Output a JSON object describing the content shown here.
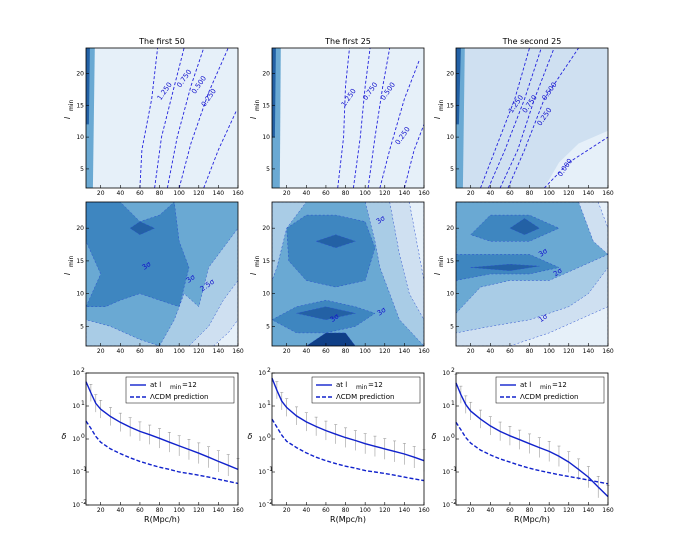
{
  "chart_data": {
    "type": "grid-of-plots",
    "x_ticks": [
      20,
      40,
      60,
      80,
      100,
      120,
      140,
      160
    ],
    "x_range": [
      5,
      160
    ],
    "row1_y_ticks": [
      5,
      10,
      15,
      20
    ],
    "row2_y_ticks": [
      5,
      10,
      15,
      20
    ],
    "y_range": [
      2,
      24
    ],
    "ylabel_l": "l",
    "ylabel_sub": "min",
    "columns": [
      {
        "title": "The first 50",
        "row1_labels": [
          {
            "text": "1.250",
            "x": 87,
            "y": 17
          },
          {
            "text": "0.750",
            "x": 107,
            "y": 19
          },
          {
            "text": "0.500",
            "x": 122,
            "y": 18
          },
          {
            "text": "0.250",
            "x": 132,
            "y": 16
          }
        ],
        "row2_labels": [
          {
            "text": "3σ",
            "x": 68,
            "y": 14
          },
          {
            "text": "3σ",
            "x": 113,
            "y": 12
          },
          {
            "text": "2.5σ",
            "x": 130,
            "y": 11
          }
        ],
        "row3": {
          "legend_obs": "at l",
          "legend_obs_sub": "min",
          "legend_obs_eq": "=12",
          "legend_pred": "ΛCDM prediction",
          "obs_points": [
            [
              5,
              55
            ],
            [
              10,
              25
            ],
            [
              15,
              12
            ],
            [
              20,
              8
            ],
            [
              30,
              4.8
            ],
            [
              40,
              3.2
            ],
            [
              50,
              2.3
            ],
            [
              60,
              1.7
            ],
            [
              70,
              1.35
            ],
            [
              80,
              1.05
            ],
            [
              90,
              0.8
            ],
            [
              100,
              0.62
            ],
            [
              110,
              0.48
            ],
            [
              120,
              0.37
            ],
            [
              130,
              0.28
            ],
            [
              140,
              0.21
            ],
            [
              150,
              0.16
            ],
            [
              160,
              0.12
            ]
          ],
          "pred_points": [
            [
              5,
              3.5
            ],
            [
              10,
              2.1
            ],
            [
              15,
              1.2
            ],
            [
              20,
              0.8
            ],
            [
              30,
              0.5
            ],
            [
              40,
              0.36
            ],
            [
              50,
              0.27
            ],
            [
              60,
              0.21
            ],
            [
              70,
              0.17
            ],
            [
              80,
              0.14
            ],
            [
              90,
              0.12
            ],
            [
              100,
              0.1
            ],
            [
              110,
              0.09
            ],
            [
              120,
              0.08
            ],
            [
              130,
              0.07
            ],
            [
              140,
              0.06
            ],
            [
              150,
              0.052
            ],
            [
              160,
              0.045
            ]
          ]
        }
      },
      {
        "title": "The first 25",
        "row1_labels": [
          {
            "text": "1.250",
            "x": 85,
            "y": 16
          },
          {
            "text": "0.750",
            "x": 107,
            "y": 17
          },
          {
            "text": "0.500",
            "x": 125,
            "y": 17
          },
          {
            "text": "0.250",
            "x": 140,
            "y": 10
          }
        ],
        "row2_labels": [
          {
            "text": "3σ",
            "x": 117,
            "y": 21
          },
          {
            "text": "3σ",
            "x": 70,
            "y": 6
          },
          {
            "text": "3σ",
            "x": 118,
            "y": 7
          }
        ],
        "row3": {
          "legend_obs": "at l",
          "legend_obs_sub": "min",
          "legend_obs_eq": "=12",
          "legend_pred": "ΛCDM prediction",
          "obs_points": [
            [
              5,
              70
            ],
            [
              10,
              30
            ],
            [
              15,
              14
            ],
            [
              20,
              9
            ],
            [
              30,
              5
            ],
            [
              40,
              3.3
            ],
            [
              50,
              2.4
            ],
            [
              60,
              1.8
            ],
            [
              70,
              1.4
            ],
            [
              80,
              1.1
            ],
            [
              90,
              0.9
            ],
            [
              100,
              0.72
            ],
            [
              110,
              0.6
            ],
            [
              120,
              0.5
            ],
            [
              130,
              0.42
            ],
            [
              140,
              0.35
            ],
            [
              150,
              0.28
            ],
            [
              160,
              0.22
            ]
          ],
          "pred_points": [
            [
              5,
              4
            ],
            [
              10,
              2.3
            ],
            [
              15,
              1.3
            ],
            [
              20,
              0.85
            ],
            [
              30,
              0.55
            ],
            [
              40,
              0.38
            ],
            [
              50,
              0.28
            ],
            [
              60,
              0.22
            ],
            [
              70,
              0.18
            ],
            [
              80,
              0.15
            ],
            [
              90,
              0.13
            ],
            [
              100,
              0.11
            ],
            [
              110,
              0.1
            ],
            [
              120,
              0.09
            ],
            [
              130,
              0.08
            ],
            [
              140,
              0.07
            ],
            [
              150,
              0.062
            ],
            [
              160,
              0.055
            ]
          ]
        }
      },
      {
        "title": "The second 25",
        "row1_labels": [
          {
            "text": "1.250",
            "x": 68,
            "y": 15
          },
          {
            "text": "0.750",
            "x": 82,
            "y": 15
          },
          {
            "text": "0.500",
            "x": 102,
            "y": 17
          },
          {
            "text": "0.250",
            "x": 97,
            "y": 13
          },
          {
            "text": "0.000",
            "x": 118,
            "y": 5
          }
        ],
        "row2_labels": [
          {
            "text": "3σ",
            "x": 95,
            "y": 16
          },
          {
            "text": "2σ",
            "x": 110,
            "y": 13
          },
          {
            "text": "1σ",
            "x": 95,
            "y": 6
          }
        ],
        "row3": {
          "legend_obs": "at l",
          "legend_obs_sub": "min",
          "legend_obs_eq": "=12",
          "legend_pred": "ΛCDM prediction",
          "obs_points": [
            [
              5,
              50
            ],
            [
              10,
              22
            ],
            [
              15,
              11
            ],
            [
              20,
              7
            ],
            [
              30,
              4
            ],
            [
              40,
              2.5
            ],
            [
              50,
              1.7
            ],
            [
              60,
              1.25
            ],
            [
              70,
              0.95
            ],
            [
              80,
              0.72
            ],
            [
              90,
              0.55
            ],
            [
              100,
              0.42
            ],
            [
              110,
              0.3
            ],
            [
              120,
              0.2
            ],
            [
              130,
              0.12
            ],
            [
              140,
              0.07
            ],
            [
              150,
              0.035
            ],
            [
              160,
              0.018
            ]
          ],
          "pred_points": [
            [
              5,
              3.2
            ],
            [
              10,
              1.9
            ],
            [
              15,
              1.1
            ],
            [
              20,
              0.75
            ],
            [
              30,
              0.46
            ],
            [
              40,
              0.33
            ],
            [
              50,
              0.25
            ],
            [
              60,
              0.2
            ],
            [
              70,
              0.16
            ],
            [
              80,
              0.13
            ],
            [
              90,
              0.11
            ],
            [
              100,
              0.095
            ],
            [
              110,
              0.083
            ],
            [
              120,
              0.073
            ],
            [
              130,
              0.065
            ],
            [
              140,
              0.057
            ],
            [
              150,
              0.05
            ],
            [
              160,
              0.044
            ]
          ]
        }
      }
    ],
    "row3_y_ticks": [
      "10",
      "10",
      "10",
      "10",
      "10"
    ],
    "row3_y_exps": [
      "2",
      "1",
      "0",
      "-1",
      "-2"
    ],
    "row3_y_log_range": [
      -2,
      2
    ],
    "row3_xlabel": "R(Mpc/h)",
    "row3_ylabel": "δ"
  }
}
